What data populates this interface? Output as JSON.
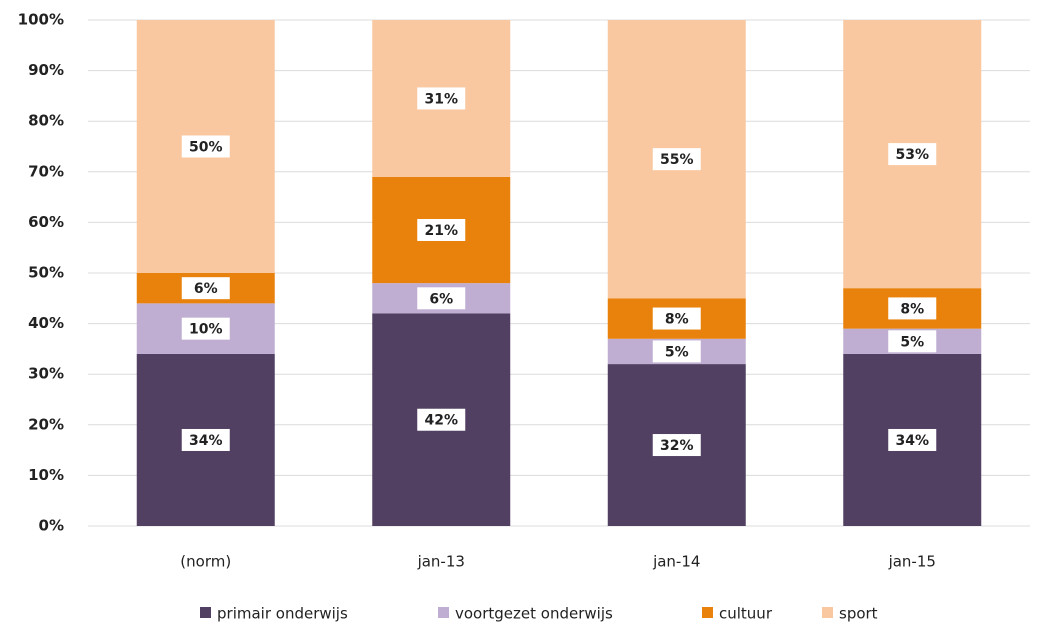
{
  "chart_data": {
    "type": "stacked_bar",
    "categories": [
      "(norm)",
      "jan-13",
      "jan-14",
      "jan-15"
    ],
    "series": [
      {
        "name": "primair onderwijs",
        "color": "#524062",
        "values": [
          34,
          42,
          32,
          34
        ],
        "value_labels": [
          "34%",
          "42%",
          "32%",
          "34%"
        ]
      },
      {
        "name": "voortgezet onderwijs",
        "color": "#bfadd2",
        "values": [
          10,
          6,
          5,
          5
        ],
        "value_labels": [
          "10%",
          "6%",
          "5%",
          "5%"
        ]
      },
      {
        "name": "cultuur",
        "color": "#e8820c",
        "values": [
          6,
          21,
          8,
          8
        ],
        "value_labels": [
          "6%",
          "21%",
          "8%",
          "8%"
        ]
      },
      {
        "name": "sport",
        "color": "#f9c8a0",
        "values": [
          50,
          31,
          55,
          53
        ],
        "value_labels": [
          "50%",
          "31%",
          "55%",
          "53%"
        ]
      }
    ],
    "ylim": [
      0,
      100
    ],
    "yticks": [
      {
        "value": 0,
        "label": "0%"
      },
      {
        "value": 10,
        "label": "10%"
      },
      {
        "value": 20,
        "label": "20%"
      },
      {
        "value": 30,
        "label": "30%"
      },
      {
        "value": 40,
        "label": "40%"
      },
      {
        "value": 50,
        "label": "50%"
      },
      {
        "value": 60,
        "label": "60%"
      },
      {
        "value": 70,
        "label": "70%"
      },
      {
        "value": 80,
        "label": "80%"
      },
      {
        "value": 90,
        "label": "90%"
      },
      {
        "value": 100,
        "label": "100%"
      }
    ],
    "grid": true,
    "legend": "bottom"
  }
}
